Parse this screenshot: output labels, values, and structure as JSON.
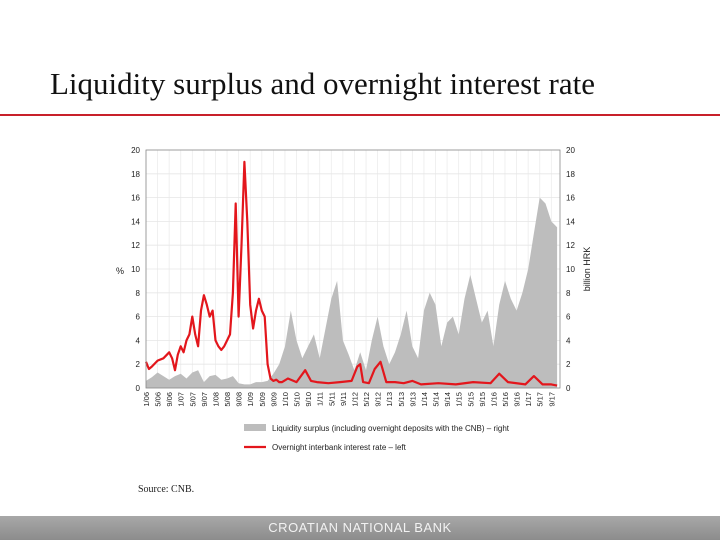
{
  "slide": {
    "title": "Liquidity surplus and overnight interest rate",
    "source": "Source: CNB.",
    "footer": "CROATIAN NATIONAL BANK"
  },
  "chart_data": {
    "type": "area",
    "ylabel_left": "%",
    "ylabel_right": "billion HRK",
    "ylim_left": [
      0,
      20
    ],
    "ylim_right": [
      0,
      20
    ],
    "yticks": [
      0,
      2,
      4,
      6,
      8,
      10,
      12,
      14,
      16,
      18,
      20
    ],
    "grid": true,
    "legend_position": "bottom",
    "x_tick_labels": [
      "1/06",
      "5/06",
      "9/06",
      "1/07",
      "5/07",
      "9/07",
      "1/08",
      "5/08",
      "9/08",
      "1/09",
      "5/09",
      "9/09",
      "1/10",
      "5/10",
      "9/10",
      "1/11",
      "5/11",
      "9/11",
      "1/12",
      "5/12",
      "9/12",
      "1/13",
      "5/13",
      "9/13",
      "1/14",
      "5/14",
      "9/14",
      "1/15",
      "5/15",
      "9/15",
      "1/16",
      "5/16",
      "9/16",
      "1/17",
      "5/17",
      "9/17"
    ],
    "series": [
      {
        "name": "Liquidity surplus (including overnight deposits with the CNB) – right",
        "axis": "right",
        "kind": "area",
        "color": "#bdbdbd",
        "x": [
          "2006-01",
          "2006-03",
          "2006-05",
          "2006-07",
          "2006-09",
          "2006-11",
          "2007-01",
          "2007-03",
          "2007-05",
          "2007-07",
          "2007-09",
          "2007-11",
          "2008-01",
          "2008-03",
          "2008-05",
          "2008-07",
          "2008-09",
          "2008-11",
          "2009-01",
          "2009-03",
          "2009-05",
          "2009-07",
          "2009-09",
          "2009-11",
          "2010-01",
          "2010-03",
          "2010-05",
          "2010-07",
          "2010-09",
          "2010-11",
          "2011-01",
          "2011-03",
          "2011-05",
          "2011-07",
          "2011-09",
          "2011-11",
          "2012-01",
          "2012-03",
          "2012-05",
          "2012-07",
          "2012-09",
          "2012-11",
          "2013-01",
          "2013-03",
          "2013-05",
          "2013-07",
          "2013-09",
          "2013-11",
          "2014-01",
          "2014-03",
          "2014-05",
          "2014-07",
          "2014-09",
          "2014-11",
          "2015-01",
          "2015-03",
          "2015-05",
          "2015-07",
          "2015-09",
          "2015-11",
          "2016-01",
          "2016-03",
          "2016-05",
          "2016-07",
          "2016-09",
          "2016-11",
          "2017-01",
          "2017-03",
          "2017-05",
          "2017-07",
          "2017-09",
          "2017-11"
        ],
        "values": [
          0.6,
          0.9,
          1.3,
          1.0,
          0.7,
          1.0,
          1.2,
          0.8,
          1.3,
          1.5,
          0.5,
          1.0,
          1.1,
          0.7,
          0.8,
          1.0,
          0.4,
          0.3,
          0.3,
          0.5,
          0.5,
          0.6,
          1.2,
          2.0,
          3.5,
          6.5,
          4.0,
          2.5,
          3.5,
          4.5,
          2.5,
          5.0,
          7.5,
          9.0,
          4.0,
          2.8,
          1.5,
          3.0,
          1.5,
          4.0,
          6.0,
          3.5,
          2.0,
          3.0,
          4.5,
          6.5,
          3.5,
          2.5,
          6.5,
          8.0,
          7.0,
          3.5,
          5.5,
          6.0,
          4.5,
          7.5,
          9.5,
          7.5,
          5.5,
          6.5,
          3.5,
          7.0,
          9.0,
          7.5,
          6.5,
          8.0,
          10.0,
          13.0,
          16.0,
          15.5,
          14.0,
          13.5
        ]
      },
      {
        "name": "Overnight interbank interest rate – left",
        "axis": "left",
        "kind": "line",
        "color": "#e3161c",
        "x": [
          "2006-01",
          "2006-02",
          "2006-03",
          "2006-05",
          "2006-07",
          "2006-09",
          "2006-10",
          "2006-11",
          "2006-12",
          "2007-01",
          "2007-02",
          "2007-03",
          "2007-04",
          "2007-05",
          "2007-06",
          "2007-07",
          "2007-08",
          "2007-09",
          "2007-10",
          "2007-11",
          "2007-12",
          "2008-01",
          "2008-02",
          "2008-03",
          "2008-04",
          "2008-05",
          "2008-06",
          "2008-07",
          "2008-08",
          "2008-09",
          "2008-10",
          "2008-11",
          "2008-12",
          "2009-01",
          "2009-02",
          "2009-03",
          "2009-04",
          "2009-05",
          "2009-06",
          "2009-07",
          "2009-08",
          "2009-09",
          "2009-10",
          "2009-11",
          "2009-12",
          "2010-02",
          "2010-05",
          "2010-08",
          "2010-10",
          "2010-12",
          "2011-04",
          "2011-08",
          "2011-12",
          "2012-02",
          "2012-03",
          "2012-04",
          "2012-06",
          "2012-08",
          "2012-10",
          "2012-12",
          "2013-03",
          "2013-06",
          "2013-09",
          "2013-12",
          "2014-06",
          "2014-12",
          "2015-06",
          "2015-12",
          "2016-03",
          "2016-06",
          "2016-12",
          "2017-03",
          "2017-06",
          "2017-09",
          "2017-11"
        ],
        "values": [
          2.2,
          1.6,
          1.8,
          2.3,
          2.5,
          3.0,
          2.5,
          1.5,
          2.8,
          3.5,
          3.0,
          4.0,
          4.5,
          6.0,
          4.5,
          3.5,
          6.5,
          7.8,
          7.0,
          6.0,
          6.5,
          4.0,
          3.5,
          3.2,
          3.5,
          4.0,
          4.5,
          8.0,
          15.5,
          6.0,
          12.0,
          19.0,
          14.0,
          7.0,
          5.0,
          6.5,
          7.5,
          6.5,
          6.0,
          2.0,
          0.8,
          0.6,
          0.7,
          0.5,
          0.5,
          0.8,
          0.5,
          1.5,
          0.6,
          0.5,
          0.4,
          0.5,
          0.6,
          1.8,
          2.0,
          0.5,
          0.4,
          1.6,
          2.2,
          0.5,
          0.5,
          0.4,
          0.6,
          0.3,
          0.4,
          0.3,
          0.5,
          0.4,
          1.2,
          0.5,
          0.3,
          1.0,
          0.3,
          0.3,
          0.2
        ]
      }
    ]
  }
}
